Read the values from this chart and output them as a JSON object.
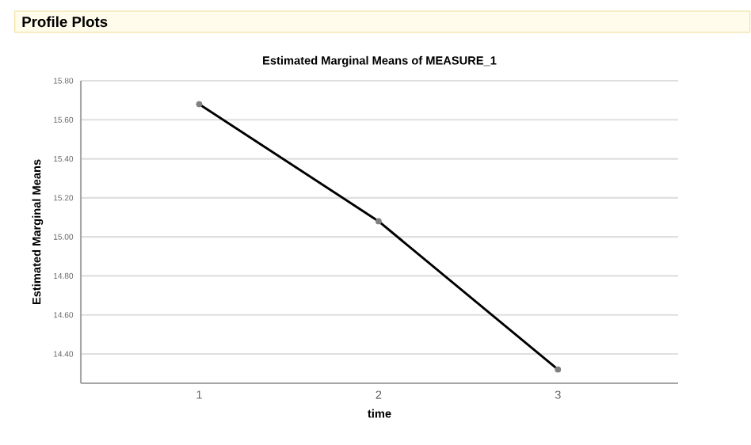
{
  "chart_data": {
    "type": "line",
    "title": "Estimated Marginal Means of MEASURE_1",
    "xlabel": "time",
    "ylabel": "Estimated Marginal Means",
    "annotations": [
      "Profile Plots"
    ],
    "categories": [
      "1",
      "2",
      "3"
    ],
    "series": [
      {
        "color": "#000000",
        "values": [
          15.68,
          15.08,
          14.32
        ]
      }
    ],
    "ylim": [
      14.25,
      15.8
    ],
    "yticks": [
      {
        "value": 14.4,
        "label": "14.40"
      },
      {
        "value": 14.6,
        "label": "14.60"
      },
      {
        "value": 14.8,
        "label": "14.80"
      },
      {
        "value": 15.0,
        "label": "15.00"
      },
      {
        "value": 15.2,
        "label": "15.20"
      },
      {
        "value": 15.4,
        "label": "15.40"
      },
      {
        "value": 15.6,
        "label": "15.60"
      },
      {
        "value": 15.8,
        "label": "15.80"
      }
    ],
    "grid": "y",
    "marker": "circle",
    "line_style": "solid"
  }
}
